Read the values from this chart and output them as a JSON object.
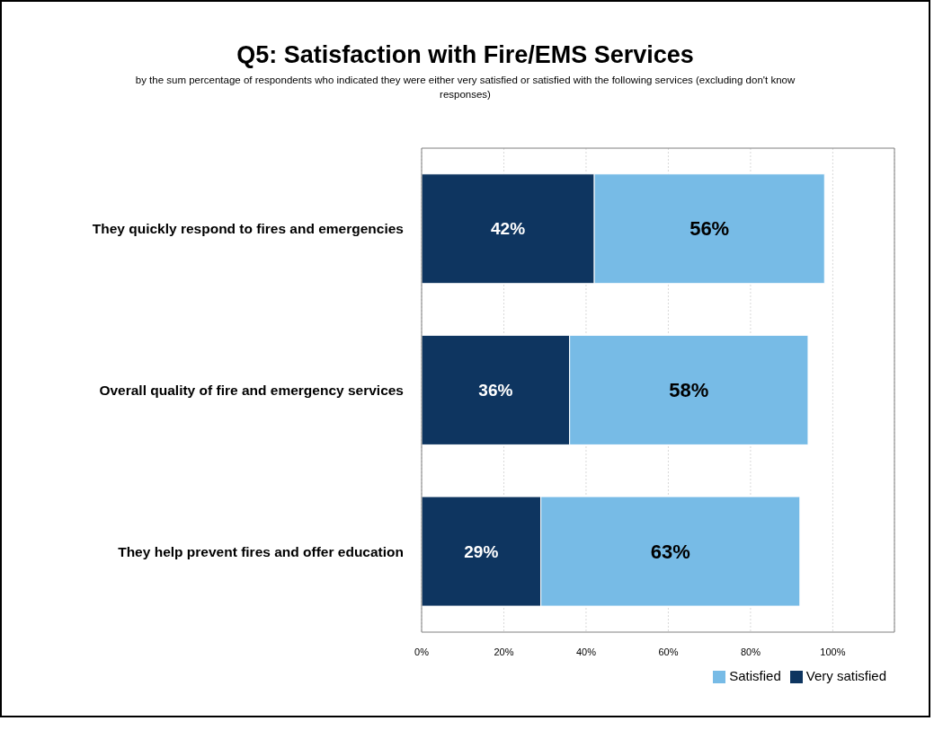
{
  "chart_data": {
    "type": "bar",
    "orientation": "horizontal",
    "stacked": true,
    "title": "Q5: Satisfaction with Fire/EMS Services",
    "subtitle": "by the sum percentage of respondents who indicated they were either very satisfied or satisfied with the following services (excluding don't know responses)",
    "categories": [
      "They quickly respond to fires and emergencies",
      "Overall quality of fire and emergency services",
      "They help prevent fires and offer education"
    ],
    "series": [
      {
        "name": "Very satisfied",
        "color": "#0e3560",
        "values": [
          42,
          36,
          29
        ],
        "value_labels": [
          "42%",
          "36%",
          "29%"
        ]
      },
      {
        "name": "Satisfied",
        "color": "#77bbe6",
        "values": [
          56,
          58,
          63
        ],
        "value_labels": [
          "56%",
          "58%",
          "63%"
        ]
      }
    ],
    "xlim": [
      0,
      115
    ],
    "xticks": [
      {
        "value": 0,
        "label": "0%"
      },
      {
        "value": 20,
        "label": "20%"
      },
      {
        "value": 40,
        "label": "40%"
      },
      {
        "value": 60,
        "label": "60%"
      },
      {
        "value": 80,
        "label": "80%"
      },
      {
        "value": 100,
        "label": "100%"
      }
    ],
    "grid": "x",
    "legend": "bottom right"
  }
}
